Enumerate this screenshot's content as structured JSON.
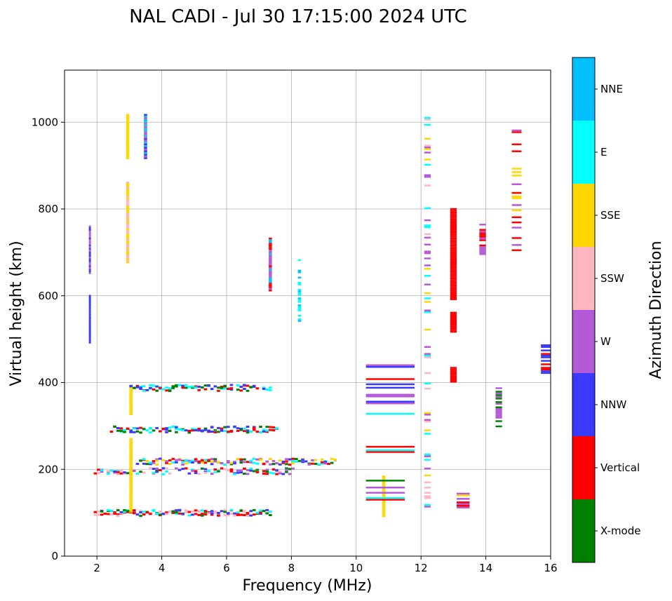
{
  "chart_data": {
    "type": "scatter",
    "title": "NAL CADI - Jul 30 17:15:00 2024 UTC",
    "xlabel": "Frequency (MHz)",
    "ylabel": "Virtual height (km)",
    "xlim": [
      1,
      16
    ],
    "ylim": [
      0,
      1120
    ],
    "xticks": [
      2,
      4,
      6,
      8,
      10,
      12,
      14,
      16
    ],
    "yticks": [
      0,
      200,
      400,
      600,
      800,
      1000
    ],
    "grid": true,
    "colorbar": {
      "label": "Azimuth Direction",
      "categories": [
        {
          "name": "X-mode",
          "color": "#008000"
        },
        {
          "name": "Vertical",
          "color": "#ff0000"
        },
        {
          "name": "NNW",
          "color": "#3a3aff"
        },
        {
          "name": "W",
          "color": "#b459d8"
        },
        {
          "name": "SSW",
          "color": "#ffb6c1"
        },
        {
          "name": "SSE",
          "color": "#ffd700"
        },
        {
          "name": "E",
          "color": "#00ffff"
        },
        {
          "name": "NNE",
          "color": "#00bfff"
        }
      ]
    },
    "traces": [
      {
        "category": "Vertical",
        "f_range": [
          1.9,
          7.3
        ],
        "h": 102,
        "density": 0.8,
        "mix": [
          "Vertical",
          "Vertical",
          "X-mode",
          "E",
          "SSW",
          "NNW"
        ]
      },
      {
        "category": "Vertical",
        "f_range": [
          1.9,
          8.0
        ],
        "h": 198,
        "density": 0.6,
        "mix": [
          "Vertical",
          "W",
          "NNW",
          "X-mode",
          "E",
          "SSW"
        ]
      },
      {
        "category": "W",
        "f_range": [
          3.2,
          9.3
        ],
        "h": 220,
        "density": 0.7,
        "mix": [
          "W",
          "NNW",
          "E",
          "Vertical",
          "X-mode",
          "SSE"
        ]
      },
      {
        "category": "Vertical",
        "f_range": [
          2.4,
          7.5
        ],
        "h": 294,
        "density": 0.75,
        "mix": [
          "Vertical",
          "X-mode",
          "E",
          "NNW"
        ]
      },
      {
        "category": "Vertical",
        "f_range": [
          3.0,
          7.3
        ],
        "h": 390,
        "density": 0.6,
        "mix": [
          "Vertical",
          "X-mode",
          "E",
          "NNW"
        ]
      },
      {
        "category": "SSE",
        "f_range": [
          10.8,
          10.9
        ],
        "h_range": [
          90,
          185
        ],
        "density": 1.0,
        "mix": [
          "SSE"
        ]
      },
      {
        "category": "SSE",
        "f_range": [
          3.0,
          3.1
        ],
        "h_range": [
          100,
          270
        ],
        "density": 1.0,
        "mix": [
          "SSE"
        ]
      },
      {
        "category": "SSE",
        "f_range": [
          3.0,
          3.1
        ],
        "h_range": [
          325,
          385
        ],
        "density": 1.0,
        "mix": [
          "SSE"
        ]
      },
      {
        "category": "SSE",
        "f_range": [
          2.9,
          3.0
        ],
        "h_range": [
          675,
          860
        ],
        "density": 1.0,
        "mix": [
          "SSE",
          "SSW"
        ]
      },
      {
        "category": "SSE",
        "f_range": [
          2.9,
          3.0
        ],
        "h_range": [
          915,
          1015
        ],
        "density": 1.0,
        "mix": [
          "SSE"
        ]
      },
      {
        "category": "NNE",
        "f_range": [
          3.45,
          3.55
        ],
        "h_range": [
          915,
          1015
        ],
        "density": 1.0,
        "mix": [
          "NNE",
          "NNW",
          "W"
        ]
      },
      {
        "category": "Vertical",
        "f_range": [
          12.9,
          13.1
        ],
        "h_range": [
          400,
          435
        ],
        "density": 1.0,
        "mix": [
          "Vertical"
        ]
      },
      {
        "category": "Vertical",
        "f_range": [
          12.9,
          13.1
        ],
        "h_range": [
          515,
          560
        ],
        "density": 1.0,
        "mix": [
          "Vertical"
        ]
      },
      {
        "category": "Vertical",
        "f_range": [
          12.9,
          13.1
        ],
        "h_range": [
          590,
          800
        ],
        "density": 1.0,
        "mix": [
          "Vertical"
        ]
      },
      {
        "category": "NNW",
        "f_range": [
          1.75,
          1.8
        ],
        "h_range": [
          490,
          600
        ],
        "density": 1.0,
        "mix": [
          "NNW"
        ]
      },
      {
        "category": "W",
        "f_range": [
          1.75,
          1.8
        ],
        "h_range": [
          650,
          760
        ],
        "density": 1.0,
        "mix": [
          "W",
          "NNW"
        ]
      },
      {
        "category": "NNE",
        "f_range": [
          7.3,
          7.4
        ],
        "h_range": [
          610,
          730
        ],
        "density": 1.0,
        "mix": [
          "NNE",
          "Vertical",
          "W"
        ]
      },
      {
        "category": "SSE",
        "f_range": [
          12.1,
          12.3
        ],
        "h_range": [
          100,
          1015
        ],
        "density": 0.25,
        "mix": [
          "SSE",
          "E",
          "W",
          "SSW"
        ]
      },
      {
        "category": "Vertical",
        "f_range": [
          15.7,
          16.0
        ],
        "h_range": [
          420,
          485
        ],
        "density": 0.6,
        "mix": [
          "Vertical",
          "NNW"
        ]
      },
      {
        "category": "W",
        "f_range": [
          13.8,
          14.0
        ],
        "h_range": [
          690,
          765
        ],
        "density": 0.7,
        "mix": [
          "W",
          "Vertical"
        ]
      },
      {
        "category": "X-mode",
        "f_range": [
          14.3,
          14.5
        ],
        "h_range": [
          285,
          385
        ],
        "density": 0.5,
        "mix": [
          "X-mode",
          "W"
        ]
      },
      {
        "category": "W",
        "f_range": [
          13.1,
          13.5
        ],
        "h_range": [
          110,
          145
        ],
        "density": 0.7,
        "mix": [
          "W",
          "SSE",
          "Vertical"
        ]
      },
      {
        "category": "Vertical",
        "f_range": [
          10.3,
          11.5
        ],
        "h_range": [
          120,
          175
        ],
        "density": 0.5,
        "mix": [
          "Vertical",
          "E",
          "W",
          "X-mode"
        ]
      },
      {
        "category": "E",
        "f_range": [
          10.3,
          11.8
        ],
        "h_range": [
          230,
          445
        ],
        "density": 0.2,
        "mix": [
          "E",
          "Vertical",
          "NNW",
          "W"
        ]
      },
      {
        "category": "E",
        "f_range": [
          8.2,
          8.3
        ],
        "h_range": [
          540,
          680
        ],
        "density": 0.5,
        "mix": [
          "E",
          "NNE"
        ]
      },
      {
        "category": "Vertical",
        "f_range": [
          14.8,
          15.1
        ],
        "h_range": [
          695,
          985
        ],
        "density": 0.3,
        "mix": [
          "Vertical",
          "SSE",
          "W"
        ]
      }
    ]
  }
}
